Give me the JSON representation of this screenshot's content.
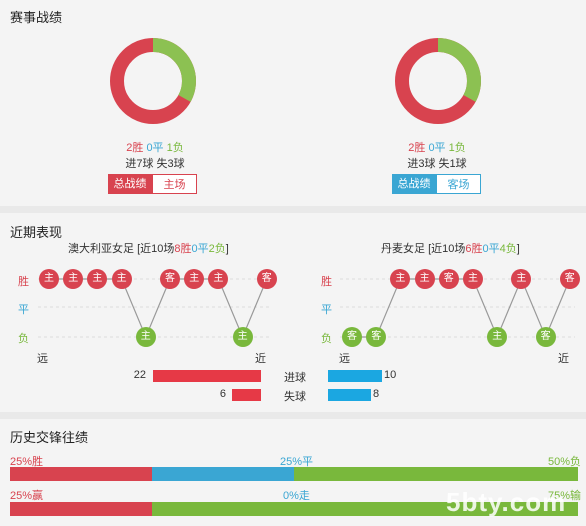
{
  "summary": {
    "title": "赛事战绩",
    "home": {
      "win": "2胜",
      "draw": "0平",
      "loss": "1负",
      "goals": "进7球  失3球",
      "tab_active": "总战绩",
      "tab_other": "主场",
      "win_fraction": 0.67,
      "loss_fraction": 0.33
    },
    "away": {
      "win": "2胜",
      "draw": "0平",
      "loss": "1负",
      "goals": "进3球  失1球",
      "tab_active": "总战绩",
      "tab_other": "客场",
      "win_fraction": 0.67,
      "loss_fraction": 0.33
    }
  },
  "recent": {
    "title": "近期表现",
    "y_labels": {
      "win": "胜",
      "draw": "平",
      "loss": "负"
    },
    "far": "远",
    "near": "近",
    "home": {
      "name": "澳大利亚女足",
      "stat_prefix": "[近10场",
      "wins": "8胜",
      "draws": "0平",
      "losses": "2负",
      "stat_suffix": "]",
      "results": [
        {
          "r": "W",
          "t": "主"
        },
        {
          "r": "W",
          "t": "主"
        },
        {
          "r": "W",
          "t": "主"
        },
        {
          "r": "W",
          "t": "主"
        },
        {
          "r": "L",
          "t": "主"
        },
        {
          "r": "W",
          "t": "客"
        },
        {
          "r": "W",
          "t": "主"
        },
        {
          "r": "W",
          "t": "主"
        },
        {
          "r": "L",
          "t": "主"
        },
        {
          "r": "W",
          "t": "客"
        }
      ]
    },
    "away": {
      "name": "丹麦女足",
      "stat_prefix": "[近10场",
      "wins": "6胜",
      "draws": "0平",
      "losses": "4负",
      "stat_suffix": "]",
      "results": [
        {
          "r": "L",
          "t": "客"
        },
        {
          "r": "L",
          "t": "客"
        },
        {
          "r": "W",
          "t": "主"
        },
        {
          "r": "W",
          "t": "主"
        },
        {
          "r": "W",
          "t": "客"
        },
        {
          "r": "W",
          "t": "主"
        },
        {
          "r": "L",
          "t": "主"
        },
        {
          "r": "W",
          "t": "主"
        },
        {
          "r": "L",
          "t": "客"
        },
        {
          "r": "W",
          "t": "客"
        }
      ]
    },
    "goals": {
      "scored_label": "进球",
      "conceded_label": "失球",
      "home_scored": 22,
      "home_conceded": 6,
      "away_scored": 10,
      "away_conceded": 8
    }
  },
  "history": {
    "title": "历史交锋往绩",
    "row1": {
      "left": "25%胜",
      "mid": "25%平",
      "right": "50%负",
      "win": 25,
      "draw": 25,
      "loss": 50
    },
    "row2": {
      "left": "25%赢",
      "mid": "0%走",
      "right": "75%输",
      "win": 25,
      "draw": 0,
      "loss": 75
    }
  },
  "watermark": "5bty.com",
  "colors": {
    "win": "#d8434f",
    "draw": "#3aa6d3",
    "loss": "#79b83c",
    "bar_red": "#e63946",
    "bar_blue": "#1ba7e1"
  }
}
